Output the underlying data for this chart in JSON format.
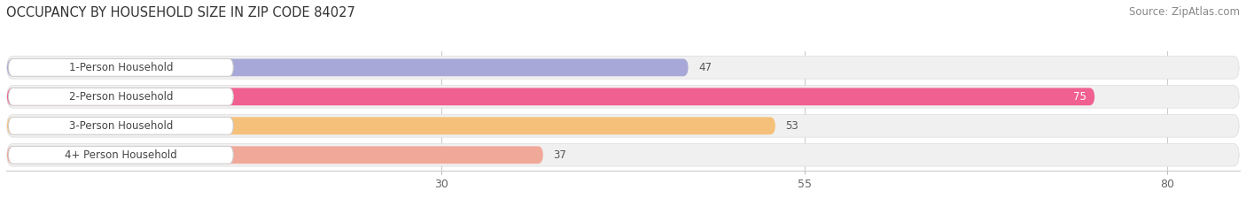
{
  "title": "OCCUPANCY BY HOUSEHOLD SIZE IN ZIP CODE 84027",
  "source_text": "Source: ZipAtlas.com",
  "categories": [
    "1-Person Household",
    "2-Person Household",
    "3-Person Household",
    "4+ Person Household"
  ],
  "values": [
    47,
    75,
    53,
    37
  ],
  "bar_colors": [
    "#a8a8d8",
    "#f06090",
    "#f5c07a",
    "#f0a898"
  ],
  "bar_bg_color": "#f0f0f0",
  "label_bg_color": "#ffffff",
  "xticks": [
    30,
    55,
    80
  ],
  "xmin": 0,
  "xmax": 85,
  "title_fontsize": 10.5,
  "source_fontsize": 8.5,
  "label_fontsize": 8.5,
  "value_fontsize": 8.5,
  "tick_fontsize": 9,
  "figsize": [
    14.06,
    2.33
  ],
  "dpi": 100
}
